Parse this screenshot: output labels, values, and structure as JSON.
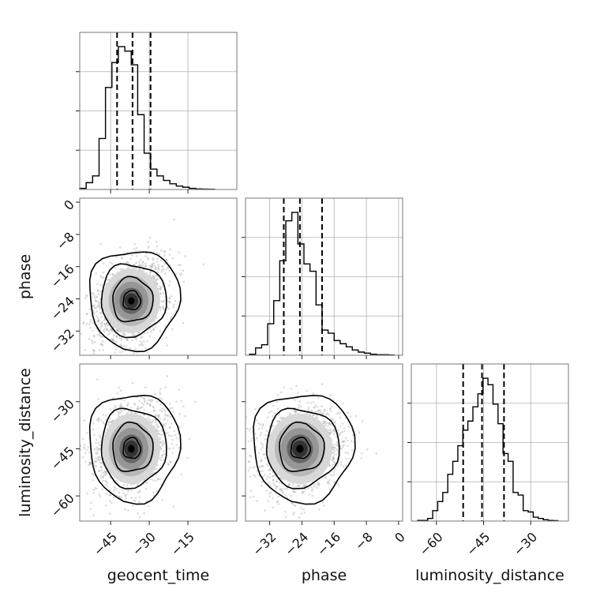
{
  "chart_data": {
    "type": "corner",
    "parameters": [
      "geocent_time",
      "phase",
      "luminosity_distance"
    ],
    "labels": {
      "geocent_time": "geocent_time",
      "phase": "phase",
      "luminosity_distance": "luminosity_distance"
    },
    "ranges": {
      "geocent_time": [
        -57,
        4
      ],
      "phase": [
        -38,
        1
      ],
      "luminosity_distance": [
        -68,
        -18
      ]
    },
    "ticks": {
      "geocent_time": [
        -45,
        -30,
        -15
      ],
      "phase": [
        -32,
        -24,
        -16,
        -8,
        0
      ],
      "luminosity_distance": [
        -60,
        -45,
        -30
      ]
    },
    "tick_labels": {
      "geocent_time": [
        "−45",
        "−30",
        "−15"
      ],
      "phase": [
        "−32",
        "−24",
        "−16",
        "−8",
        "0"
      ],
      "luminosity_distance": [
        "−60",
        "−45",
        "−30"
      ]
    },
    "quantiles": {
      "geocent_time": [
        -42.5,
        -36.5,
        -29.5
      ],
      "phase": [
        -28.5,
        -24.5,
        -19
      ],
      "luminosity_distance": [
        -51.5,
        -45.5,
        -38.5
      ]
    },
    "histograms": {
      "geocent_time": {
        "edges": [
          -57,
          -54.5,
          -52,
          -49.5,
          -47,
          -44.5,
          -42,
          -39.5,
          -37,
          -34.5,
          -32,
          -29.5,
          -27,
          -24.5,
          -22,
          -19.5,
          -17,
          -14.5,
          -12,
          -9.5,
          -7,
          -4.5
        ],
        "counts": [
          1,
          6,
          12,
          45,
          90,
          112,
          126,
          122,
          110,
          66,
          32,
          18,
          12,
          8,
          5,
          3,
          2,
          1,
          0.5,
          0.3,
          0.2
        ]
      },
      "phase": {
        "edges": [
          -37,
          -35.5,
          -34,
          -32.5,
          -31,
          -29.5,
          -28,
          -26.5,
          -25,
          -23.5,
          -22,
          -20.5,
          -19,
          -17.5,
          -16,
          -14.5,
          -13,
          -11.5,
          -10,
          -8.5,
          -7,
          -5.5,
          -4,
          -2.5,
          -1
        ],
        "counts": [
          1,
          7,
          10,
          30,
          52,
          90,
          128,
          136,
          106,
          87,
          80,
          48,
          24,
          21,
          14,
          11,
          8,
          5,
          3,
          2,
          1,
          0.5,
          0.5,
          0.2
        ]
      },
      "luminosity_distance": {
        "edges": [
          -66,
          -64.4,
          -62.8,
          -61.2,
          -59.6,
          -58,
          -56.4,
          -54.8,
          -53.2,
          -51.6,
          -50,
          -48.4,
          -46.8,
          -45.2,
          -43.6,
          -42,
          -40.4,
          -38.8,
          -37.2,
          -35.6,
          -34,
          -32.4,
          -30.8,
          -29.2,
          -27.6,
          -26,
          -24.4,
          -22.8,
          -21.2
        ],
        "counts": [
          0.5,
          0.5,
          2,
          8,
          15,
          22,
          36,
          46,
          58,
          70,
          77,
          88,
          98,
          110,
          105,
          90,
          75,
          52,
          46,
          22,
          20,
          8,
          7,
          3,
          2,
          1,
          0.5,
          0.3
        ]
      }
    }
  }
}
